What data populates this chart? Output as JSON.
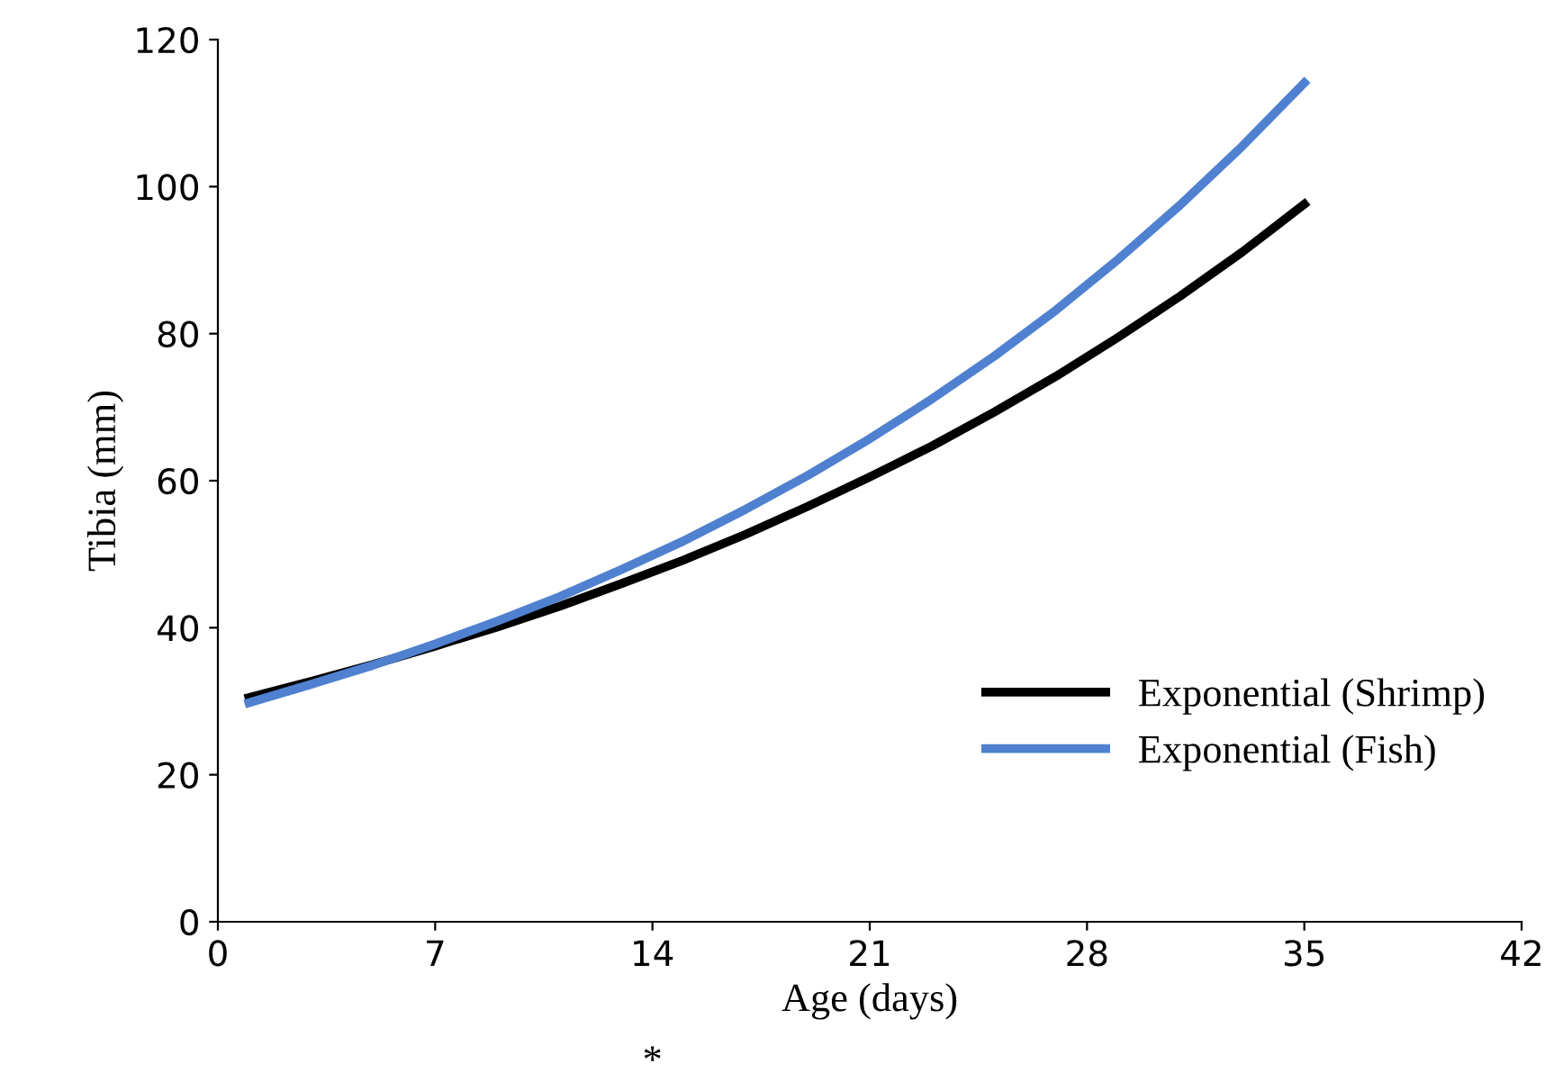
{
  "chart_data": {
    "type": "line",
    "xlabel": "Age (days)",
    "ylabel": "Tibia (mm)",
    "xlim": [
      0,
      42
    ],
    "xticks": [
      0,
      7,
      14,
      21,
      28,
      35,
      42
    ],
    "ylim": [
      0,
      120
    ],
    "yticks": [
      0,
      20,
      40,
      60,
      80,
      100,
      120
    ],
    "x": [
      1,
      3,
      5,
      7,
      9,
      11,
      13,
      15,
      17,
      19,
      21,
      23,
      25,
      27,
      29,
      31,
      33,
      35
    ],
    "series": [
      {
        "name": "Exponential (Shrimp)",
        "color": "#000000",
        "values": [
          30.5,
          32.7,
          35.0,
          37.5,
          40.1,
          42.9,
          46.0,
          49.2,
          52.7,
          56.5,
          60.5,
          64.7,
          69.3,
          74.2,
          79.5,
          85.1,
          91.1,
          97.6
        ]
      },
      {
        "name": "Exponential (Fish)",
        "color": "#4f81d0",
        "values": [
          29.8,
          32.3,
          34.9,
          37.8,
          40.9,
          44.2,
          47.9,
          51.8,
          56.1,
          60.7,
          65.7,
          71.1,
          76.9,
          83.2,
          90.1,
          97.5,
          105.5,
          114.1
        ]
      }
    ],
    "annotations": [
      "*"
    ],
    "grid": false,
    "legend": "bottom right",
    "marker": "none",
    "line_style": "solid"
  }
}
